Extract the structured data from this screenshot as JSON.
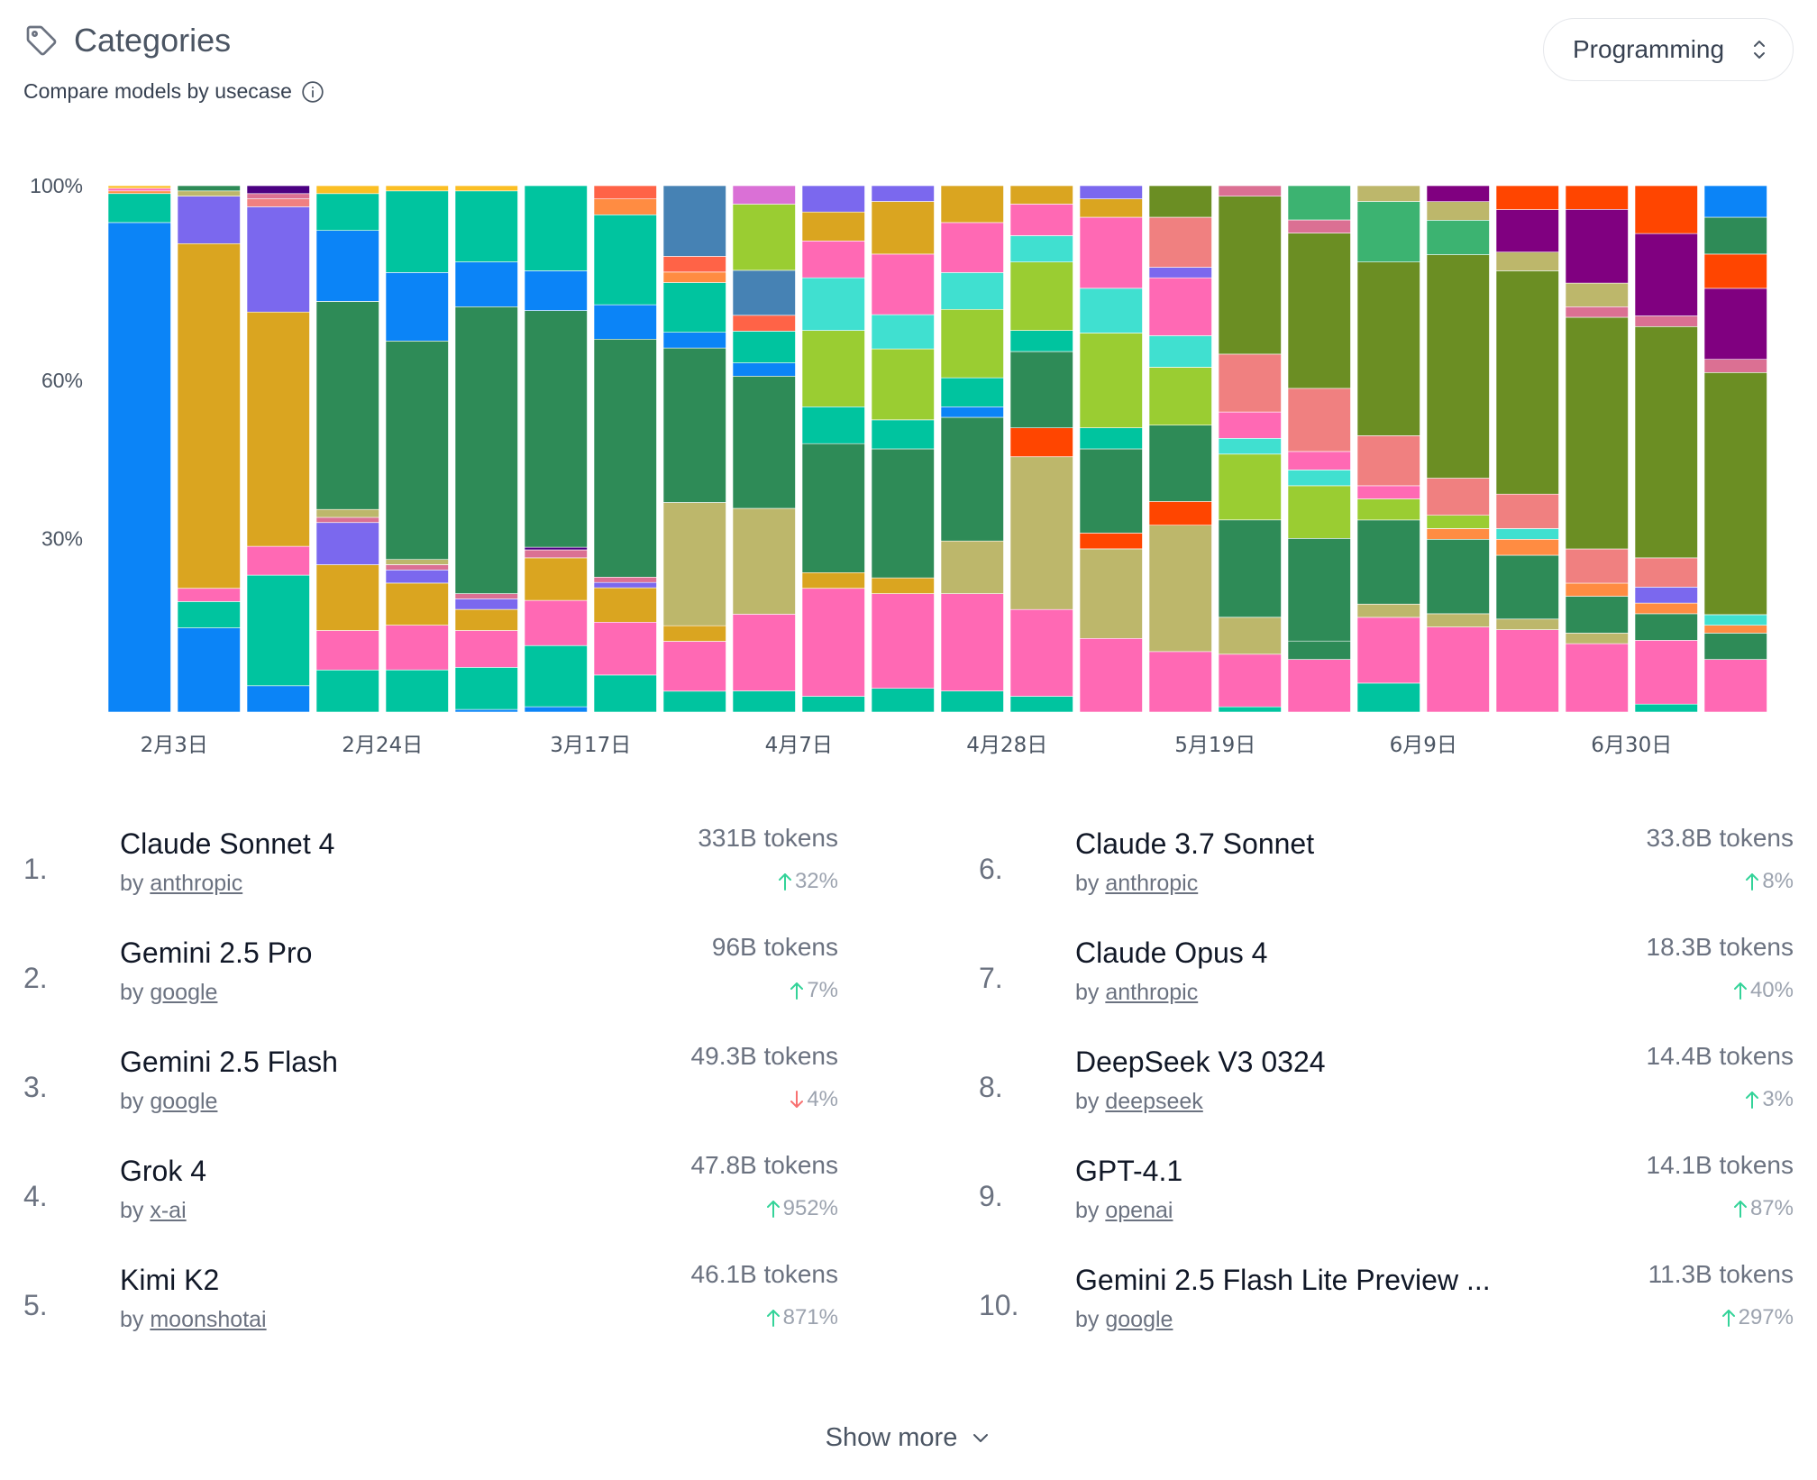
{
  "header": {
    "title": "Categories",
    "subtitle": "Compare models by usecase",
    "icon": "tag-icon",
    "info_icon": "info-icon"
  },
  "category_select": {
    "value": "Programming",
    "icon": "chevron-up-down-icon"
  },
  "colors": {
    "blue": "#0b84f7",
    "olive": "#6b8e23",
    "green": "#2e8b57",
    "teal": "#00c49f",
    "pink": "#ff69b4",
    "goldenrod": "#daa520",
    "khaki": "#bdb76b",
    "purple": "#7b68ee",
    "violet": "#800080",
    "salmon": "#f08080",
    "lime": "#9acd32",
    "turquoise": "#40e0d0",
    "steel": "#4682b4",
    "orange": "#ff8c42",
    "red": "#ff4500",
    "mint": "#3cb371",
    "rose": "#db7093",
    "orchid": "#da70d6",
    "tomato": "#ff6347",
    "dark": "#4b0082",
    "gold": "#fbbf24"
  },
  "chart_data": {
    "type": "bar",
    "stacked": true,
    "y_tick_labels": [
      "100%",
      "60%",
      "30%"
    ],
    "y_tick_values": [
      100,
      63,
      33
    ],
    "ylim": [
      0,
      100
    ],
    "x_tick_labels": [
      "2月3日",
      "2月24日",
      "3月17日",
      "4月7日",
      "4月28日",
      "5月19日",
      "6月9日",
      "6月30日"
    ],
    "x_tick_positions": [
      0.5,
      3.5,
      6.5,
      9.5,
      12.5,
      15.5,
      18.5,
      21.5
    ],
    "bar_count": 24,
    "bars": [
      [
        [
          "blue",
          93
        ],
        [
          "teal",
          5.5
        ],
        [
          "orange",
          0.5
        ],
        [
          "pink",
          0.5
        ],
        [
          "gold",
          0.5
        ]
      ],
      [
        [
          "blue",
          16
        ],
        [
          "teal",
          5
        ],
        [
          "pink",
          2.5
        ],
        [
          "goldenrod",
          65.5
        ],
        [
          "purple",
          9
        ],
        [
          "khaki",
          1
        ],
        [
          "green",
          1
        ]
      ],
      [
        [
          "blue",
          5
        ],
        [
          "teal",
          21
        ],
        [
          "pink",
          5.5
        ],
        [
          "goldenrod",
          44.5
        ],
        [
          "purple",
          20
        ],
        [
          "salmon",
          1.5
        ],
        [
          "rose",
          1
        ],
        [
          "dark",
          1.5
        ]
      ],
      [
        [
          "teal",
          8
        ],
        [
          "pink",
          7.5
        ],
        [
          "goldenrod",
          12.5
        ],
        [
          "purple",
          8
        ],
        [
          "rose",
          1
        ],
        [
          "khaki",
          1.5
        ],
        [
          "green",
          39.5
        ],
        [
          "blue",
          13.5
        ],
        [
          "teal",
          7
        ],
        [
          "gold",
          1.5
        ]
      ],
      [
        [
          "teal",
          8
        ],
        [
          "pink",
          8.5
        ],
        [
          "goldenrod",
          8
        ],
        [
          "purple",
          2.5
        ],
        [
          "rose",
          1
        ],
        [
          "khaki",
          1
        ],
        [
          "green",
          41.5
        ],
        [
          "blue",
          13
        ],
        [
          "teal",
          15.5
        ],
        [
          "gold",
          1
        ]
      ],
      [
        [
          "blue",
          0.5
        ],
        [
          "teal",
          8
        ],
        [
          "pink",
          7
        ],
        [
          "goldenrod",
          4
        ],
        [
          "purple",
          2
        ],
        [
          "rose",
          1
        ],
        [
          "green",
          54.5
        ],
        [
          "blue",
          8.5
        ],
        [
          "teal",
          13.5
        ],
        [
          "gold",
          1
        ]
      ],
      [
        [
          "blue",
          1
        ],
        [
          "teal",
          11.5
        ],
        [
          "pink",
          8.5
        ],
        [
          "goldenrod",
          8
        ],
        [
          "rose",
          1.5
        ],
        [
          "dark",
          0.5
        ],
        [
          "green",
          44.5
        ],
        [
          "blue",
          7.5
        ],
        [
          "teal",
          16
        ]
      ],
      [
        [
          "teal",
          7
        ],
        [
          "pink",
          10
        ],
        [
          "goldenrod",
          6.5
        ],
        [
          "purple",
          1
        ],
        [
          "rose",
          1
        ],
        [
          "green",
          45
        ],
        [
          "blue",
          6.5
        ],
        [
          "teal",
          17
        ],
        [
          "orange",
          3
        ],
        [
          "tomato",
          2.5
        ]
      ],
      [
        [
          "teal",
          4
        ],
        [
          "pink",
          9.5
        ],
        [
          "goldenrod",
          3
        ],
        [
          "khaki",
          23.5
        ],
        [
          "green",
          29.5
        ],
        [
          "blue",
          3
        ],
        [
          "teal",
          9.5
        ],
        [
          "orange",
          2
        ],
        [
          "tomato",
          3
        ],
        [
          "steel",
          13.5
        ]
      ],
      [
        [
          "teal",
          4
        ],
        [
          "pink",
          14.5
        ],
        [
          "khaki",
          20
        ],
        [
          "green",
          25
        ],
        [
          "blue",
          2.5
        ],
        [
          "teal",
          6
        ],
        [
          "tomato",
          3
        ],
        [
          "steel",
          8.5
        ],
        [
          "lime",
          12.5
        ],
        [
          "orchid",
          3.5
        ]
      ],
      [
        [
          "teal",
          3
        ],
        [
          "pink",
          20.5
        ],
        [
          "goldenrod",
          3
        ],
        [
          "green",
          24.5
        ],
        [
          "teal",
          7
        ],
        [
          "lime",
          14.5
        ],
        [
          "turquoise",
          10
        ],
        [
          "pink",
          7
        ],
        [
          "goldenrod",
          5.5
        ],
        [
          "purple",
          5
        ]
      ],
      [
        [
          "teal",
          4.5
        ],
        [
          "pink",
          18
        ],
        [
          "goldenrod",
          3
        ],
        [
          "green",
          24.5
        ],
        [
          "teal",
          5.5
        ],
        [
          "lime",
          13.5
        ],
        [
          "turquoise",
          6.5
        ],
        [
          "pink",
          11.5
        ],
        [
          "goldenrod",
          10
        ],
        [
          "purple",
          3
        ]
      ],
      [
        [
          "teal",
          4
        ],
        [
          "pink",
          18.5
        ],
        [
          "khaki",
          10
        ],
        [
          "green",
          23.5
        ],
        [
          "blue",
          2
        ],
        [
          "teal",
          5.5
        ],
        [
          "lime",
          13
        ],
        [
          "turquoise",
          7
        ],
        [
          "pink",
          9.5
        ],
        [
          "goldenrod",
          7
        ]
      ],
      [
        [
          "teal",
          3
        ],
        [
          "pink",
          16.5
        ],
        [
          "khaki",
          29
        ],
        [
          "red",
          5.5
        ],
        [
          "green",
          14.5
        ],
        [
          "teal",
          4
        ],
        [
          "lime",
          13
        ],
        [
          "turquoise",
          5
        ],
        [
          "pink",
          6
        ],
        [
          "goldenrod",
          3.5
        ]
      ],
      [
        [
          "pink",
          14
        ],
        [
          "khaki",
          17
        ],
        [
          "red",
          3
        ],
        [
          "green",
          16
        ],
        [
          "teal",
          4
        ],
        [
          "lime",
          18
        ],
        [
          "turquoise",
          8.5
        ],
        [
          "pink",
          13.5
        ],
        [
          "goldenrod",
          3.5
        ],
        [
          "purple",
          2.5
        ]
      ],
      [
        [
          "pink",
          11.5
        ],
        [
          "khaki",
          24
        ],
        [
          "red",
          4.5
        ],
        [
          "green",
          14.5
        ],
        [
          "lime",
          11
        ],
        [
          "turquoise",
          6
        ],
        [
          "pink",
          11
        ],
        [
          "purple",
          2
        ],
        [
          "salmon",
          9.5
        ],
        [
          "olive",
          6
        ]
      ],
      [
        [
          "teal",
          1
        ],
        [
          "pink",
          10
        ],
        [
          "khaki",
          7
        ],
        [
          "green",
          18.5
        ],
        [
          "lime",
          12.5
        ],
        [
          "turquoise",
          3
        ],
        [
          "pink",
          5
        ],
        [
          "salmon",
          11
        ],
        [
          "olive",
          30
        ],
        [
          "rose",
          2
        ]
      ],
      [
        [
          "pink",
          10
        ],
        [
          "green",
          3.5
        ],
        [
          "green",
          19.5
        ],
        [
          "lime",
          10
        ],
        [
          "turquoise",
          3
        ],
        [
          "pink",
          3.5
        ],
        [
          "salmon",
          12
        ],
        [
          "olive",
          29.5
        ],
        [
          "rose",
          2.5
        ],
        [
          "mint",
          6.5
        ]
      ],
      [
        [
          "teal",
          5.5
        ],
        [
          "pink",
          12.5
        ],
        [
          "khaki",
          2.5
        ],
        [
          "green",
          16
        ],
        [
          "lime",
          4
        ],
        [
          "pink",
          2.5
        ],
        [
          "salmon",
          9.5
        ],
        [
          "olive",
          33
        ],
        [
          "mint",
          11.5
        ],
        [
          "khaki",
          3
        ]
      ],
      [
        [
          "pink",
          16
        ],
        [
          "khaki",
          2.5
        ],
        [
          "green",
          14
        ],
        [
          "orange",
          2
        ],
        [
          "lime",
          2.5
        ],
        [
          "salmon",
          7
        ],
        [
          "olive",
          42
        ],
        [
          "mint",
          6.5
        ],
        [
          "khaki",
          3.5
        ],
        [
          "violet",
          3
        ]
      ],
      [
        [
          "pink",
          15.5
        ],
        [
          "khaki",
          2
        ],
        [
          "green",
          12
        ],
        [
          "orange",
          3
        ],
        [
          "turquoise",
          2
        ],
        [
          "salmon",
          6.5
        ],
        [
          "olive",
          42
        ],
        [
          "khaki",
          3.5
        ],
        [
          "violet",
          8
        ],
        [
          "red",
          4.5
        ]
      ],
      [
        [
          "pink",
          13
        ],
        [
          "khaki",
          2
        ],
        [
          "green",
          7
        ],
        [
          "orange",
          2.5
        ],
        [
          "salmon",
          6.5
        ],
        [
          "olive",
          44
        ],
        [
          "rose",
          2
        ],
        [
          "khaki",
          4.5
        ],
        [
          "violet",
          14
        ],
        [
          "red",
          4.5
        ]
      ],
      [
        [
          "teal",
          1.5
        ],
        [
          "pink",
          12
        ],
        [
          "green",
          5
        ],
        [
          "orange",
          2
        ],
        [
          "purple",
          3
        ],
        [
          "salmon",
          5.5
        ],
        [
          "olive",
          43.5
        ],
        [
          "rose",
          2
        ],
        [
          "violet",
          15.5
        ],
        [
          "red",
          9
        ]
      ],
      [
        [
          "pink",
          10
        ],
        [
          "green",
          5
        ],
        [
          "orange",
          1.5
        ],
        [
          "turquoise",
          2
        ],
        [
          "olive",
          46
        ],
        [
          "rose",
          2.5
        ],
        [
          "violet",
          13.5
        ],
        [
          "red",
          6.5
        ],
        [
          "green",
          7
        ],
        [
          "blue",
          6
        ]
      ]
    ]
  },
  "rankings": {
    "left": [
      {
        "rank": "1.",
        "name": "Claude Sonnet 4",
        "by": "by",
        "author": "anthropic",
        "tokens": "331B tokens",
        "change": "32%",
        "dir": "up"
      },
      {
        "rank": "2.",
        "name": "Gemini 2.5 Pro",
        "by": "by",
        "author": "google",
        "tokens": "96B tokens",
        "change": "7%",
        "dir": "up"
      },
      {
        "rank": "3.",
        "name": "Gemini 2.5 Flash",
        "by": "by",
        "author": "google",
        "tokens": "49.3B tokens",
        "change": "4%",
        "dir": "down"
      },
      {
        "rank": "4.",
        "name": "Grok 4",
        "by": "by",
        "author": "x-ai",
        "tokens": "47.8B tokens",
        "change": "952%",
        "dir": "up"
      },
      {
        "rank": "5.",
        "name": "Kimi K2",
        "by": "by",
        "author": "moonshotai",
        "tokens": "46.1B tokens",
        "change": "871%",
        "dir": "up"
      }
    ],
    "right": [
      {
        "rank": "6.",
        "name": "Claude 3.7 Sonnet",
        "by": "by",
        "author": "anthropic",
        "tokens": "33.8B tokens",
        "change": "8%",
        "dir": "up"
      },
      {
        "rank": "7.",
        "name": "Claude Opus 4",
        "by": "by",
        "author": "anthropic",
        "tokens": "18.3B tokens",
        "change": "40%",
        "dir": "up"
      },
      {
        "rank": "8.",
        "name": "DeepSeek V3 0324",
        "by": "by",
        "author": "deepseek",
        "tokens": "14.4B tokens",
        "change": "3%",
        "dir": "up"
      },
      {
        "rank": "9.",
        "name": "GPT-4.1",
        "by": "by",
        "author": "openai",
        "tokens": "14.1B tokens",
        "change": "87%",
        "dir": "up"
      },
      {
        "rank": "10.",
        "name": "Gemini 2.5 Flash Lite Preview ...",
        "by": "by",
        "author": "google",
        "tokens": "11.3B tokens",
        "change": "297%",
        "dir": "up"
      }
    ]
  },
  "show_more": {
    "label": "Show more",
    "icon": "chevron-down-icon"
  },
  "arrow_colors": {
    "up": "#34d399",
    "down": "#f87171"
  }
}
